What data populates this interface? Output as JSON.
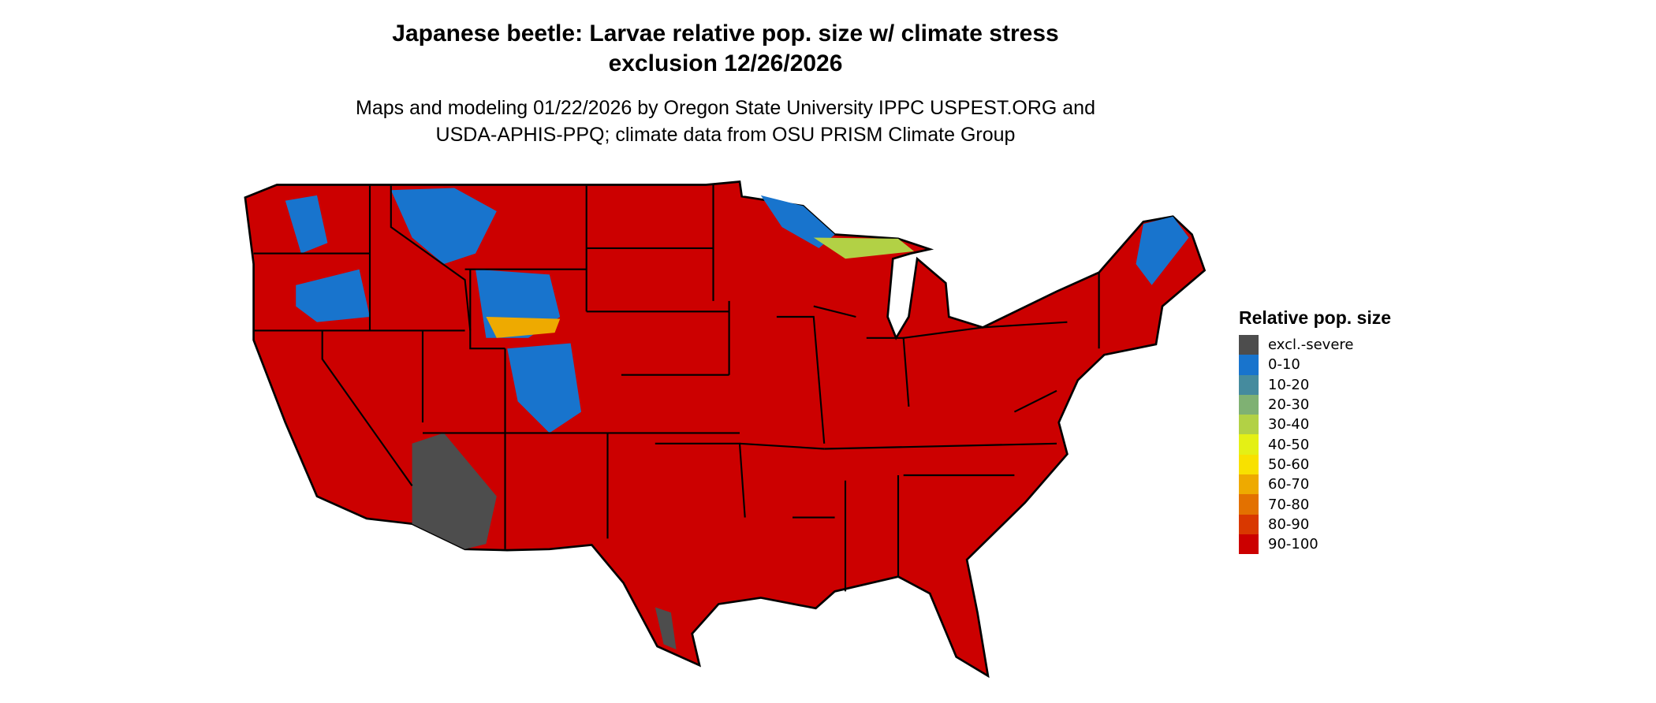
{
  "title": {
    "line1": "Japanese beetle: Larvae relative pop. size w/ climate stress",
    "line2": "exclusion 12/26/2026"
  },
  "subtitle": {
    "line1": "Maps and modeling 01/22/2026 by Oregon State University IPPC USPEST.ORG and",
    "line2": "USDA-APHIS-PPQ; climate data from OSU PRISM Climate Group"
  },
  "map": {
    "region": "Contiguous United States",
    "dominant_class": "90-100",
    "border_color": "#000000"
  },
  "legend": {
    "title": "Relative pop. size",
    "items": [
      {
        "label": "excl.-severe",
        "color": "#4d4d4d"
      },
      {
        "label": "0-10",
        "color": "#1874cd"
      },
      {
        "label": "10-20",
        "color": "#458b9e"
      },
      {
        "label": "20-30",
        "color": "#7fb173"
      },
      {
        "label": "30-40",
        "color": "#b2d145"
      },
      {
        "label": "40-50",
        "color": "#e4f015"
      },
      {
        "label": "50-60",
        "color": "#f8e100"
      },
      {
        "label": "60-70",
        "color": "#eeaa00"
      },
      {
        "label": "70-80",
        "color": "#e37100"
      },
      {
        "label": "80-90",
        "color": "#d93800"
      },
      {
        "label": "90-100",
        "color": "#cc0000"
      }
    ]
  }
}
